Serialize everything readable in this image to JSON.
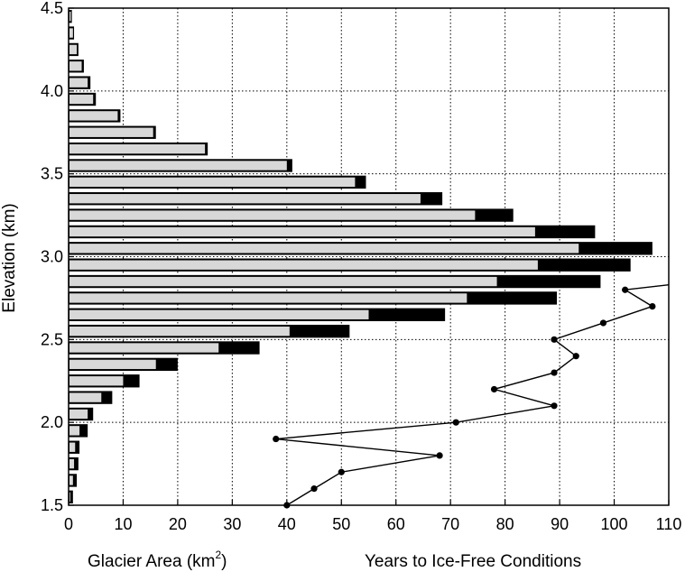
{
  "chart_data": {
    "type": "bar",
    "orientation": "horizontal",
    "ylabel": "Elevation (km)",
    "ylim": [
      1.5,
      4.5
    ],
    "yticks": [
      "1.5",
      "2.0",
      "2.5",
      "3.0",
      "3.5",
      "4.0",
      "4.5"
    ],
    "xlim": [
      0,
      110
    ],
    "xticks": [
      "0",
      "10",
      "20",
      "30",
      "40",
      "50",
      "60",
      "70",
      "80",
      "90",
      "100",
      "110"
    ],
    "xlabel_left": "Glacier Area (km",
    "xlabel_left_sup": "2",
    "xlabel_left_close": ")",
    "xlabel_right": "Years to Ice-Free Conditions",
    "grid": true,
    "bar_band_width_km": 0.1,
    "bars": [
      {
        "elevation": 1.5,
        "total": 0.8,
        "light": 0.3
      },
      {
        "elevation": 1.6,
        "total": 1.5,
        "light": 0.8
      },
      {
        "elevation": 1.7,
        "total": 1.8,
        "light": 1.0
      },
      {
        "elevation": 1.8,
        "total": 2.0,
        "light": 1.2
      },
      {
        "elevation": 1.9,
        "total": 3.5,
        "light": 2.0
      },
      {
        "elevation": 2.0,
        "total": 4.5,
        "light": 3.5
      },
      {
        "elevation": 2.1,
        "total": 8.0,
        "light": 6.0
      },
      {
        "elevation": 2.2,
        "total": 13.0,
        "light": 10.0
      },
      {
        "elevation": 2.3,
        "total": 20.0,
        "light": 16.0
      },
      {
        "elevation": 2.4,
        "total": 35.0,
        "light": 27.5
      },
      {
        "elevation": 2.5,
        "total": 51.5,
        "light": 40.5
      },
      {
        "elevation": 2.6,
        "total": 69.0,
        "light": 55.0
      },
      {
        "elevation": 2.7,
        "total": 89.5,
        "light": 73.0
      },
      {
        "elevation": 2.8,
        "total": 97.5,
        "light": 78.5
      },
      {
        "elevation": 2.9,
        "total": 103.0,
        "light": 86.0
      },
      {
        "elevation": 3.0,
        "total": 107.0,
        "light": 93.5
      },
      {
        "elevation": 3.1,
        "total": 96.5,
        "light": 85.5
      },
      {
        "elevation": 3.2,
        "total": 81.5,
        "light": 74.5
      },
      {
        "elevation": 3.3,
        "total": 68.5,
        "light": 64.5
      },
      {
        "elevation": 3.4,
        "total": 54.5,
        "light": 52.5
      },
      {
        "elevation": 3.5,
        "total": 41.0,
        "light": 40.0
      },
      {
        "elevation": 3.6,
        "total": 25.5,
        "light": 25.0
      },
      {
        "elevation": 3.7,
        "total": 16.0,
        "light": 15.5
      },
      {
        "elevation": 3.8,
        "total": 9.5,
        "light": 9.0
      },
      {
        "elevation": 3.9,
        "total": 5.0,
        "light": 4.5
      },
      {
        "elevation": 4.0,
        "total": 4.0,
        "light": 3.5
      },
      {
        "elevation": 4.1,
        "total": 2.8,
        "light": 2.4
      },
      {
        "elevation": 4.2,
        "total": 1.8,
        "light": 1.5
      },
      {
        "elevation": 4.3,
        "total": 1.0,
        "light": 0.8
      },
      {
        "elevation": 4.4,
        "total": 0.6,
        "light": 0.4
      }
    ],
    "line": {
      "points": [
        {
          "x": 40,
          "y": 1.5
        },
        {
          "x": 45,
          "y": 1.6
        },
        {
          "x": 50,
          "y": 1.7
        },
        {
          "x": 68,
          "y": 1.8
        },
        {
          "x": 38,
          "y": 1.9
        },
        {
          "x": 71,
          "y": 2.0
        },
        {
          "x": 89,
          "y": 2.1
        },
        {
          "x": 78,
          "y": 2.2
        },
        {
          "x": 89,
          "y": 2.3
        },
        {
          "x": 93,
          "y": 2.4
        },
        {
          "x": 89,
          "y": 2.5
        },
        {
          "x": 98,
          "y": 2.6
        },
        {
          "x": 107,
          "y": 2.7
        },
        {
          "x": 102,
          "y": 2.8
        }
      ],
      "tail_to": {
        "x": 110,
        "y": 2.83
      }
    },
    "colors": {
      "bar_dark": "#000000",
      "bar_light": "#d8d8d8",
      "line": "#000000",
      "grid": "#000000"
    }
  }
}
